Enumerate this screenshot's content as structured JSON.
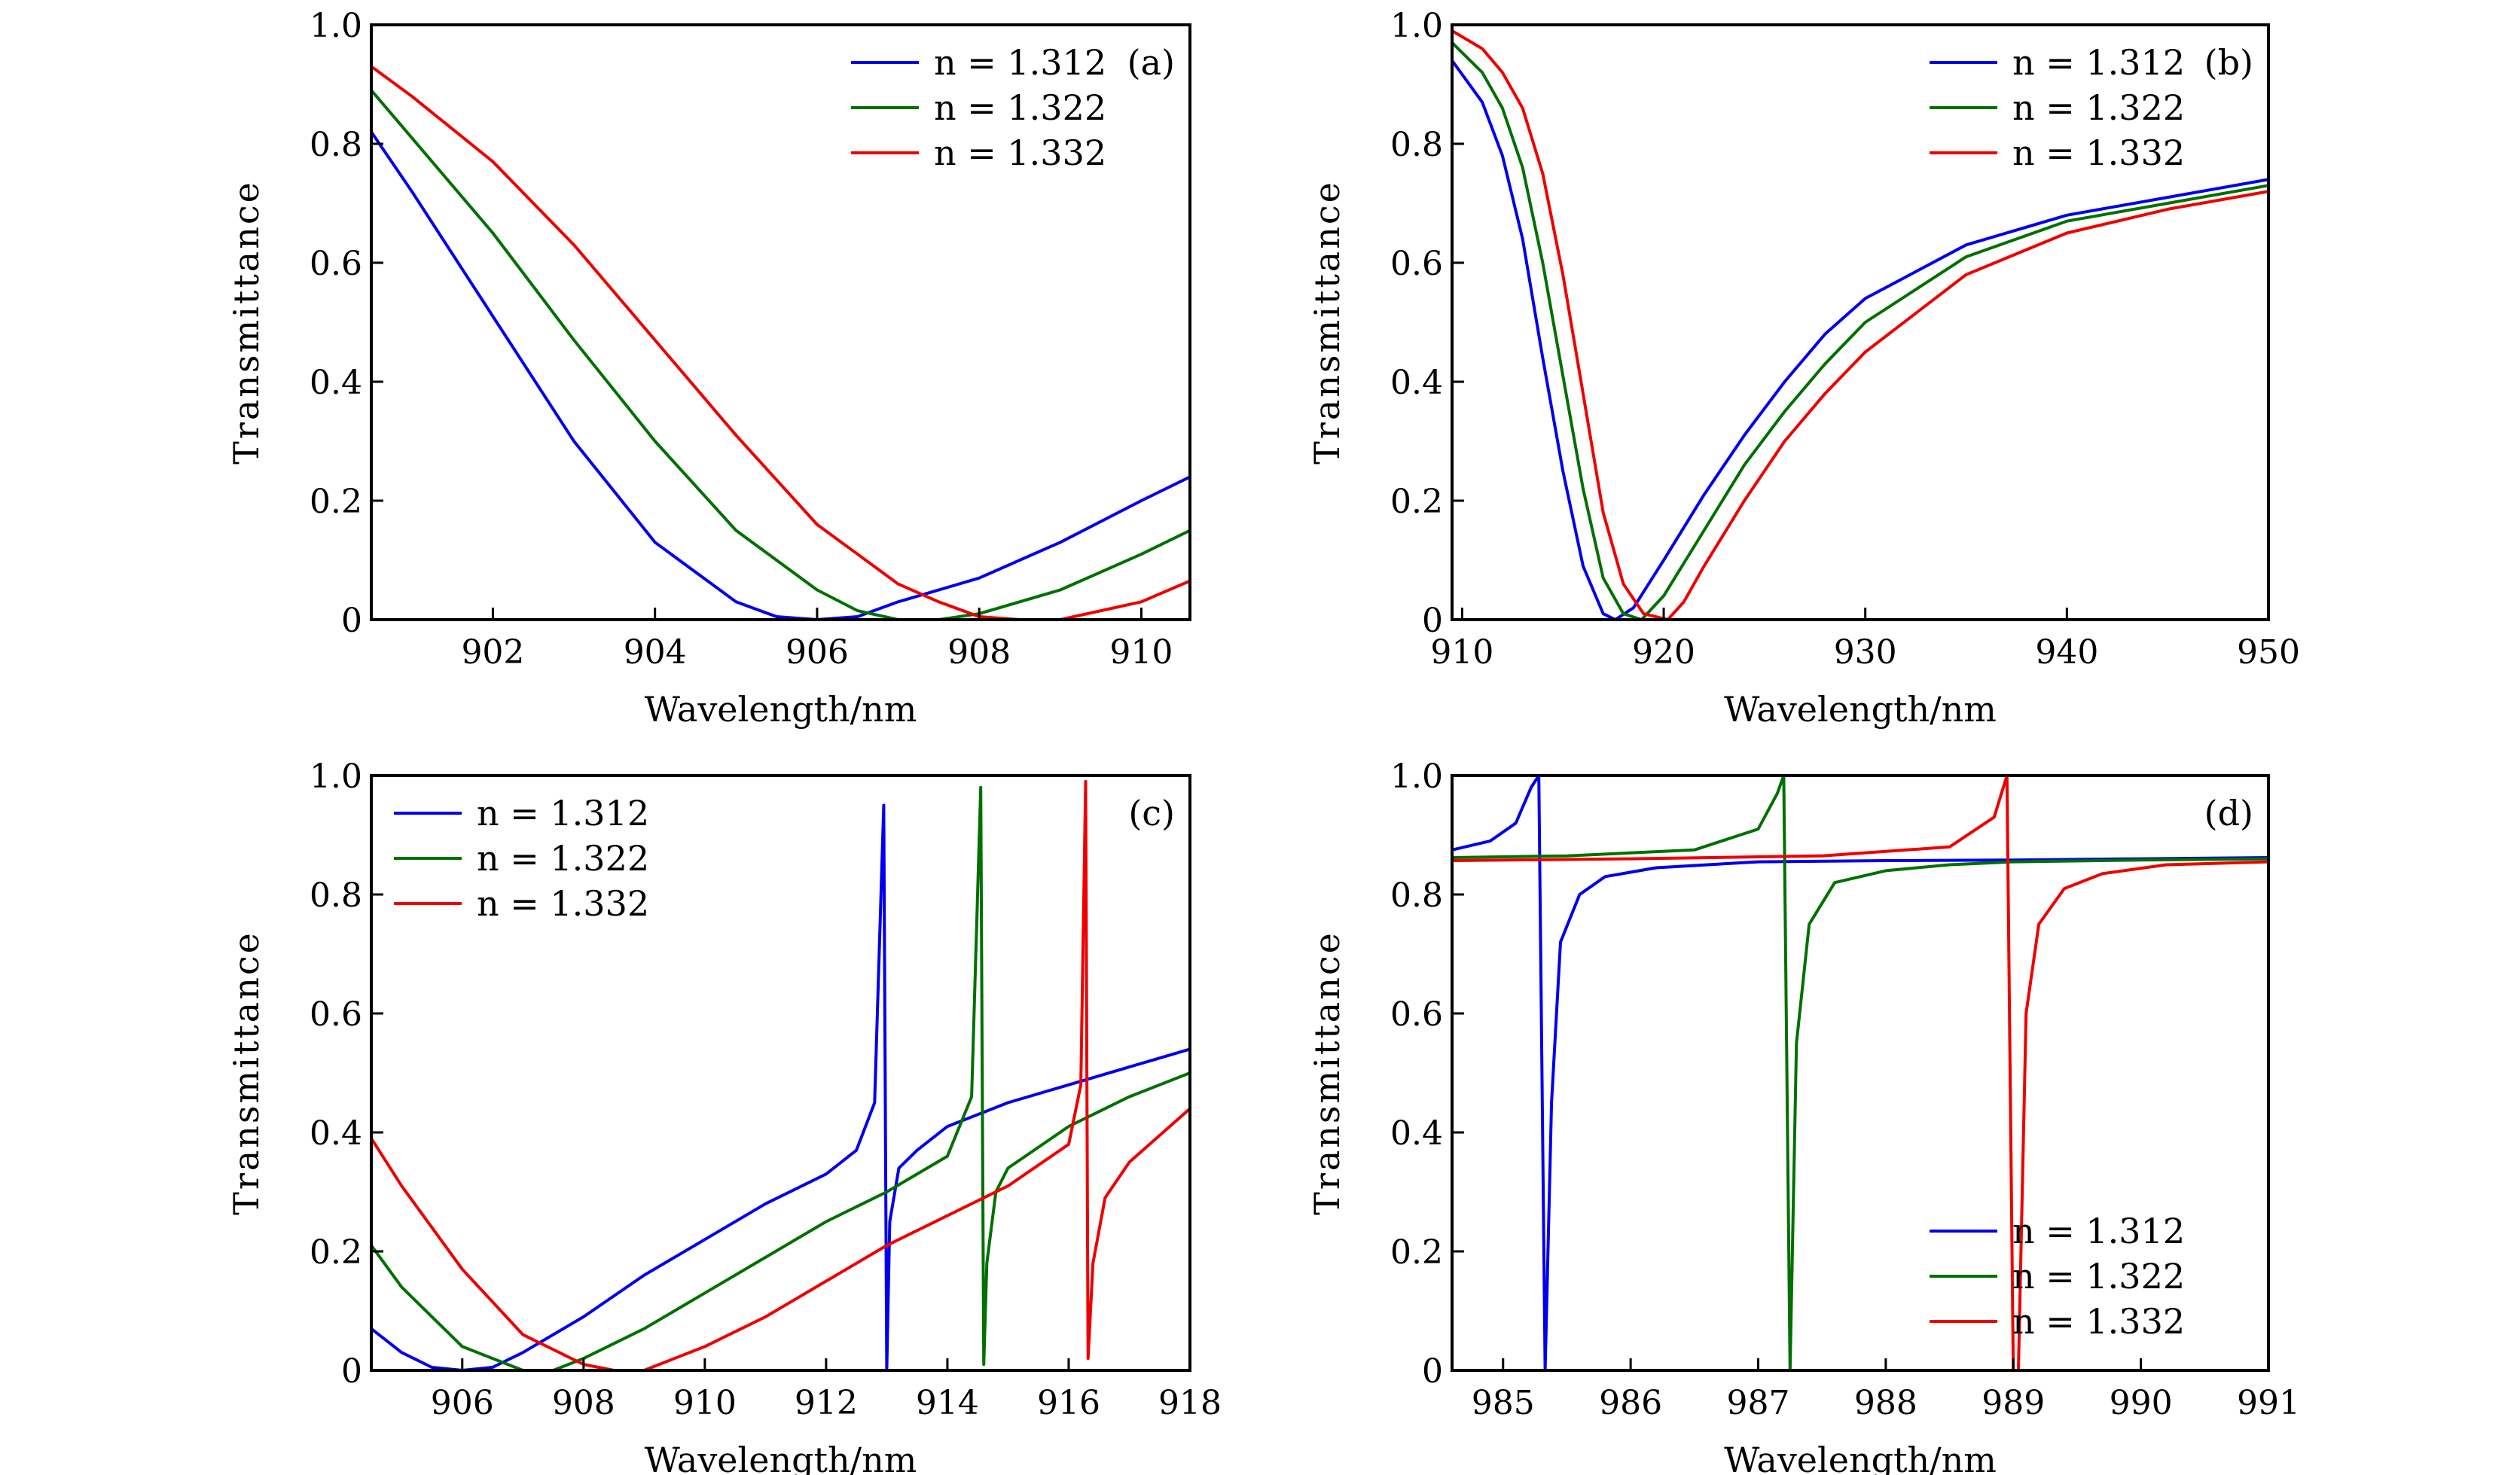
{
  "chart_data": [
    {
      "type": "line",
      "panel_label": "(a)",
      "xlabel": "Wavelength/nm",
      "ylabel": "Transmittance",
      "xlim": [
        900.5,
        910.6
      ],
      "ylim": [
        0,
        1.0
      ],
      "xticks": [
        902,
        904,
        906,
        908,
        910
      ],
      "yticks": [
        0,
        0.2,
        0.4,
        0.6,
        0.8,
        1.0
      ],
      "ytick_labels": [
        "0",
        "0.2",
        "0.4",
        "0.6",
        "0.8",
        "1.0"
      ],
      "legend_position": "top-right",
      "series": [
        {
          "name": "n = 1.312",
          "color": "#0000ee",
          "x": [
            900.5,
            901,
            902,
            903,
            904,
            905,
            905.5,
            906,
            906.5,
            907,
            908,
            909,
            910,
            910.6
          ],
          "y": [
            0.82,
            0.72,
            0.51,
            0.3,
            0.13,
            0.03,
            0.005,
            0.0,
            0.005,
            0.03,
            0.07,
            0.13,
            0.2,
            0.24
          ]
        },
        {
          "name": "n = 1.322",
          "color": "#007000",
          "x": [
            900.5,
            901,
            902,
            903,
            904,
            905,
            906,
            906.5,
            907,
            907.5,
            908,
            909,
            910,
            910.6
          ],
          "y": [
            0.89,
            0.81,
            0.65,
            0.47,
            0.3,
            0.15,
            0.05,
            0.015,
            0.0,
            0.0,
            0.01,
            0.05,
            0.11,
            0.15
          ]
        },
        {
          "name": "n = 1.332",
          "color": "#ee0000",
          "x": [
            900.5,
            901,
            902,
            903,
            904,
            905,
            906,
            907,
            907.5,
            908,
            908.5,
            909,
            910,
            910.6
          ],
          "y": [
            0.93,
            0.88,
            0.77,
            0.63,
            0.47,
            0.31,
            0.16,
            0.06,
            0.03,
            0.005,
            0.0,
            0.0,
            0.03,
            0.065
          ]
        }
      ]
    },
    {
      "type": "line",
      "panel_label": "(b)",
      "xlabel": "Wavelength/nm",
      "ylabel": "Transmittance",
      "xlim": [
        909.5,
        950
      ],
      "ylim": [
        0,
        1.0
      ],
      "xticks": [
        910,
        920,
        930,
        940,
        950
      ],
      "yticks": [
        0,
        0.2,
        0.4,
        0.6,
        0.8,
        1.0
      ],
      "ytick_labels": [
        "0",
        "0.2",
        "0.4",
        "0.6",
        "0.8",
        "1.0"
      ],
      "legend_position": "top-right",
      "series": [
        {
          "name": "n = 1.312",
          "color": "#0000ee",
          "x": [
            909.5,
            911,
            912,
            913,
            914,
            915,
            916,
            917,
            917.6,
            918.5,
            920,
            922,
            924,
            926,
            928,
            930,
            935,
            940,
            945,
            950
          ],
          "y": [
            0.94,
            0.87,
            0.78,
            0.64,
            0.44,
            0.25,
            0.09,
            0.01,
            0.0,
            0.02,
            0.1,
            0.21,
            0.31,
            0.4,
            0.48,
            0.54,
            0.63,
            0.68,
            0.71,
            0.74
          ]
        },
        {
          "name": "n = 1.322",
          "color": "#007000",
          "x": [
            909.5,
            911,
            912,
            913,
            914,
            915,
            916,
            917,
            918,
            918.9,
            920,
            922,
            924,
            926,
            928,
            930,
            935,
            940,
            945,
            950
          ],
          "y": [
            0.97,
            0.92,
            0.86,
            0.76,
            0.6,
            0.41,
            0.22,
            0.07,
            0.01,
            0.0,
            0.04,
            0.15,
            0.26,
            0.35,
            0.43,
            0.5,
            0.61,
            0.67,
            0.7,
            0.73
          ]
        },
        {
          "name": "n = 1.332",
          "color": "#ee0000",
          "x": [
            909.5,
            911,
            912,
            913,
            914,
            915,
            916,
            917,
            918,
            919,
            920.2,
            921,
            922,
            924,
            926,
            928,
            930,
            935,
            940,
            945,
            950
          ],
          "y": [
            0.99,
            0.96,
            0.92,
            0.86,
            0.75,
            0.58,
            0.38,
            0.18,
            0.06,
            0.01,
            0.0,
            0.03,
            0.09,
            0.2,
            0.3,
            0.38,
            0.45,
            0.58,
            0.65,
            0.69,
            0.72
          ]
        }
      ]
    },
    {
      "type": "line",
      "panel_label": "(c)",
      "xlabel": "Wavelength/nm",
      "ylabel": "Transmittance",
      "xlim": [
        904.5,
        918
      ],
      "ylim": [
        0,
        1.0
      ],
      "xticks": [
        906,
        908,
        910,
        912,
        914,
        916,
        918
      ],
      "yticks": [
        0,
        0.2,
        0.4,
        0.6,
        0.8,
        1.0
      ],
      "ytick_labels": [
        "0",
        "0.2",
        "0.4",
        "0.6",
        "0.8",
        "1.0"
      ],
      "legend_position": "top-left",
      "series": [
        {
          "name": "n = 1.312",
          "color": "#0000ee",
          "x": [
            904.5,
            905,
            905.5,
            906,
            906.5,
            907,
            908,
            909,
            910,
            911,
            912,
            912.5,
            912.8,
            912.95,
            913.0,
            913.05,
            913.2,
            913.5,
            914,
            915,
            916,
            917,
            918
          ],
          "y": [
            0.07,
            0.03,
            0.005,
            0.0,
            0.005,
            0.03,
            0.09,
            0.16,
            0.22,
            0.28,
            0.33,
            0.37,
            0.45,
            0.95,
            0.0,
            0.25,
            0.34,
            0.37,
            0.41,
            0.45,
            0.48,
            0.51,
            0.54
          ]
        },
        {
          "name": "n = 1.322",
          "color": "#007000",
          "x": [
            904.5,
            905,
            906,
            907,
            907.5,
            908,
            909,
            910,
            911,
            912,
            913,
            914,
            914.4,
            914.55,
            914.6,
            914.65,
            914.8,
            915,
            916,
            917,
            918
          ],
          "y": [
            0.21,
            0.14,
            0.04,
            0.0,
            0.0,
            0.02,
            0.07,
            0.13,
            0.19,
            0.25,
            0.3,
            0.36,
            0.46,
            0.98,
            0.01,
            0.18,
            0.3,
            0.34,
            0.41,
            0.46,
            0.5
          ]
        },
        {
          "name": "n = 1.332",
          "color": "#ee0000",
          "x": [
            904.5,
            905,
            906,
            907,
            908,
            908.5,
            909,
            910,
            911,
            912,
            913,
            914,
            915,
            916,
            916.2,
            916.28,
            916.32,
            916.4,
            916.6,
            917,
            918
          ],
          "y": [
            0.39,
            0.31,
            0.17,
            0.06,
            0.01,
            0.0,
            0.0,
            0.04,
            0.09,
            0.15,
            0.21,
            0.26,
            0.31,
            0.38,
            0.48,
            0.99,
            0.02,
            0.18,
            0.29,
            0.35,
            0.44
          ]
        }
      ]
    },
    {
      "type": "line",
      "panel_label": "(d)",
      "xlabel": "Wavelength/nm",
      "ylabel": "Transmittance",
      "xlim": [
        984.6,
        991
      ],
      "ylim": [
        0,
        1.0
      ],
      "xticks": [
        985,
        986,
        987,
        988,
        989,
        990,
        991
      ],
      "yticks": [
        0,
        0.2,
        0.4,
        0.6,
        0.8,
        1.0
      ],
      "ytick_labels": [
        "0",
        "0.2",
        "0.4",
        "0.6",
        "0.8",
        "1.0"
      ],
      "legend_position": "bottom-right",
      "series": [
        {
          "name": "n = 1.312",
          "color": "#0000ee",
          "x": [
            984.6,
            984.9,
            985.1,
            985.22,
            985.28,
            985.33,
            985.38,
            985.45,
            985.6,
            985.8,
            986.2,
            987,
            988,
            989,
            990,
            991
          ],
          "y": [
            0.875,
            0.89,
            0.92,
            0.98,
            1.0,
            0.0,
            0.45,
            0.72,
            0.8,
            0.83,
            0.845,
            0.855,
            0.857,
            0.858,
            0.86,
            0.862
          ]
        },
        {
          "name": "n = 1.322",
          "color": "#007000",
          "x": [
            984.6,
            985.5,
            986.5,
            987.0,
            987.15,
            987.2,
            987.25,
            987.3,
            987.4,
            987.6,
            988,
            988.5,
            989,
            990,
            991
          ],
          "y": [
            0.862,
            0.865,
            0.875,
            0.91,
            0.97,
            1.0,
            0.0,
            0.55,
            0.75,
            0.82,
            0.84,
            0.85,
            0.855,
            0.858,
            0.86
          ]
        },
        {
          "name": "n = 1.332",
          "color": "#ee0000",
          "x": [
            984.6,
            986,
            987.5,
            988.5,
            988.85,
            988.95,
            989.0,
            989.04,
            989.1,
            989.2,
            989.4,
            989.7,
            990.2,
            991
          ],
          "y": [
            0.857,
            0.86,
            0.865,
            0.88,
            0.93,
            1.0,
            0.0,
            0.0,
            0.6,
            0.75,
            0.81,
            0.835,
            0.85,
            0.855
          ]
        }
      ]
    }
  ]
}
